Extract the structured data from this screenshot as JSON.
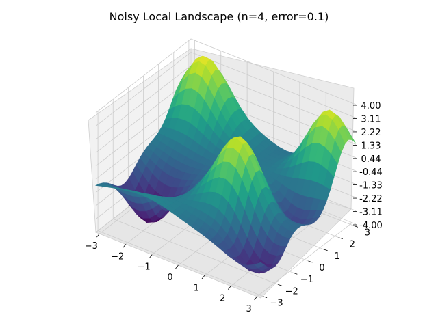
{
  "chart_data": {
    "type": "surface",
    "title": "Noisy Local Landscape (n=4, error=0.1)",
    "colormap": "viridis",
    "x": {
      "range": [
        -3.14,
        3.14
      ],
      "ticks": [
        "−3",
        "−2",
        "−1",
        "0",
        "1",
        "2",
        "3"
      ],
      "tick_values": [
        -3,
        -2,
        -1,
        0,
        1,
        2,
        3
      ]
    },
    "y": {
      "range": [
        -3.14,
        3.14
      ],
      "ticks": [
        "−3",
        "−2",
        "−1",
        "0",
        "1",
        "2",
        "3"
      ],
      "tick_values": [
        -3,
        -2,
        -1,
        0,
        1,
        2,
        3
      ]
    },
    "z": {
      "range": [
        -4.0,
        4.0
      ],
      "ticks": [
        "4.00",
        "3.11",
        "2.22",
        "1.33",
        "0.44",
        "-0.44",
        "-1.33",
        "-2.22",
        "-3.11",
        "-4.00"
      ],
      "tick_values": [
        4.0,
        3.11,
        2.22,
        1.33,
        0.44,
        -0.44,
        -1.33,
        -2.22,
        -3.11,
        -4.0
      ]
    },
    "surface_approx": {
      "n": 4,
      "error": 0.1,
      "peaks": [
        {
          "x": -2.4,
          "y": 2.6,
          "z": 3.4
        },
        {
          "x": 2.4,
          "y": 2.6,
          "z": 3.9
        },
        {
          "x": 1.0,
          "y": -0.9,
          "z": 3.3
        }
      ],
      "valleys": [
        {
          "x": -2.2,
          "y": -1.3,
          "z": -4.0
        },
        {
          "x": 2.6,
          "y": -2.2,
          "z": -3.2
        },
        {
          "x": 2.2,
          "y": 0.5,
          "z": -3.0
        }
      ],
      "grid": "off"
    }
  }
}
